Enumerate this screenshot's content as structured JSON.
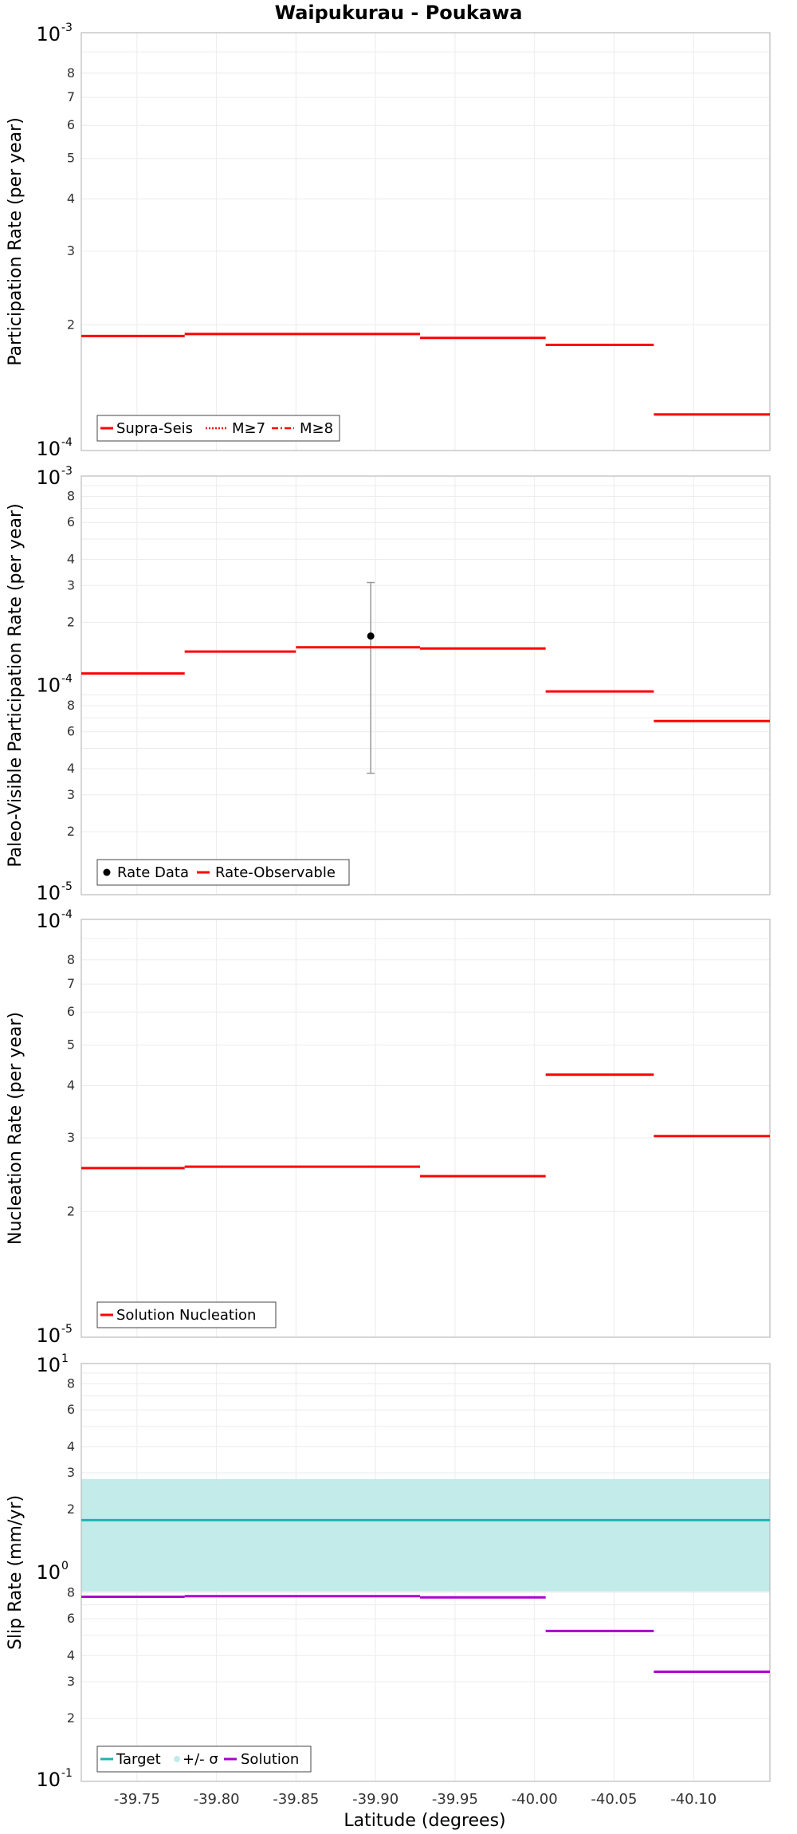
{
  "title": "Waipukurau - Poukawa",
  "xlabel": "Latitude (degrees)",
  "x_ticks": [
    "-39.75",
    "-39.80",
    "-39.85",
    "-39.90",
    "-39.95",
    "-40.00",
    "-40.05",
    "-40.10"
  ],
  "colors": {
    "red": "#ff0000",
    "cyan": "#1fb3b3",
    "band": "#c2ebea",
    "magenta": "#aa00cc",
    "frame": "#bbbbbb",
    "grid": "#ececec",
    "errorbar": "#999999"
  },
  "chart_data": [
    {
      "type": "line",
      "style": "step",
      "ylabel": "Participation Rate (per year)",
      "yscale": "log",
      "xlim": [
        -39.715,
        -40.148
      ],
      "ylim": [
        0.0001,
        0.001
      ],
      "decade_labels": [
        {
          "base": "10",
          "exp": "-3"
        },
        {
          "base": "10",
          "exp": "-4"
        }
      ],
      "minor_tick_labels": [
        "8",
        "7",
        "6",
        "5",
        "4",
        "3",
        "2"
      ],
      "legend": [
        "Supra-Seis",
        "M≥7",
        "M≥8"
      ],
      "legend_position": "bottom-left",
      "series": [
        {
          "name": "Supra-Seis",
          "color": "#ff0000",
          "segments": [
            {
              "x": [
                -39.715,
                -39.78
              ],
              "y": 0.000188
            },
            {
              "x": [
                -39.78,
                -39.928
              ],
              "y": 0.00019
            },
            {
              "x": [
                -39.928,
                -40.007
              ],
              "y": 0.000186
            },
            {
              "x": [
                -40.007,
                -40.075
              ],
              "y": 0.000179
            },
            {
              "x": [
                -40.075,
                -40.148
              ],
              "y": 0.000122
            }
          ]
        }
      ]
    },
    {
      "type": "scatter",
      "style": "step",
      "ylabel": "Paleo-Visible Participation Rate (per year)",
      "yscale": "log",
      "xlim": [
        -39.715,
        -40.148
      ],
      "ylim": [
        1e-05,
        0.001
      ],
      "decade_labels": [
        {
          "base": "10",
          "exp": "-3"
        },
        {
          "base": "10",
          "exp": "-4"
        },
        {
          "base": "10",
          "exp": "-5"
        }
      ],
      "minor_tick_labels": [
        "8",
        "6",
        "4",
        "3",
        "2",
        "8",
        "6",
        "4",
        "3",
        "2"
      ],
      "legend": [
        "Rate Data",
        "Rate-Observable"
      ],
      "legend_position": "bottom-left",
      "series": [
        {
          "name": "Rate Data",
          "color": "#000000",
          "points": [
            {
              "x": -39.897,
              "y": 0.000172,
              "err_low": 3.8e-05,
              "err_high": 0.00031
            }
          ]
        },
        {
          "name": "Rate-Observable",
          "color": "#ff0000",
          "segments": [
            {
              "x": [
                -39.715,
                -39.78
              ],
              "y": 0.000114
            },
            {
              "x": [
                -39.78,
                -39.85
              ],
              "y": 0.000145
            },
            {
              "x": [
                -39.85,
                -39.928
              ],
              "y": 0.000152
            },
            {
              "x": [
                -39.928,
                -40.007
              ],
              "y": 0.00015
            },
            {
              "x": [
                -40.007,
                -40.075
              ],
              "y": 9.35e-05
            },
            {
              "x": [
                -40.075,
                -40.148
              ],
              "y": 6.75e-05
            }
          ]
        }
      ]
    },
    {
      "type": "line",
      "style": "step",
      "ylabel": "Nucleation Rate (per year)",
      "yscale": "log",
      "xlim": [
        -39.715,
        -40.148
      ],
      "ylim": [
        1e-05,
        0.0001
      ],
      "decade_labels": [
        {
          "base": "10",
          "exp": "-4"
        },
        {
          "base": "10",
          "exp": "-5"
        }
      ],
      "minor_tick_labels": [
        "8",
        "7",
        "6",
        "5",
        "4",
        "3",
        "2"
      ],
      "legend": [
        "Solution Nucleation"
      ],
      "legend_position": "bottom-left",
      "series": [
        {
          "name": "Solution Nucleation",
          "color": "#ff0000",
          "segments": [
            {
              "x": [
                -39.715,
                -39.78
              ],
              "y": 2.54e-05
            },
            {
              "x": [
                -39.78,
                -39.928
              ],
              "y": 2.56e-05
            },
            {
              "x": [
                -39.928,
                -40.007
              ],
              "y": 2.43e-05
            },
            {
              "x": [
                -40.007,
                -40.075
              ],
              "y": 4.25e-05
            },
            {
              "x": [
                -40.075,
                -40.148
              ],
              "y": 3.03e-05
            }
          ]
        }
      ]
    },
    {
      "type": "line",
      "style": "step",
      "ylabel": "Slip Rate (mm/yr)",
      "yscale": "log",
      "xlim": [
        -39.715,
        -40.148
      ],
      "ylim": [
        0.1,
        10
      ],
      "decade_labels": [
        {
          "base": "10",
          "exp": "1"
        },
        {
          "base": "10",
          "exp": "0"
        },
        {
          "base": "10",
          "exp": "-1"
        }
      ],
      "minor_tick_labels": [
        "8",
        "6",
        "4",
        "3",
        "2",
        "8",
        "6",
        "4",
        "3",
        "2"
      ],
      "legend": [
        "Target",
        "+/- σ",
        "Solution"
      ],
      "legend_position": "bottom-left",
      "series": [
        {
          "name": "Target",
          "color": "#1fb3b3",
          "segments": [
            {
              "x": [
                -39.715,
                -40.148
              ],
              "y": 1.78
            }
          ]
        },
        {
          "name": "+/- σ",
          "color": "#c2ebea",
          "band": {
            "x": [
              -39.715,
              -40.148
            ],
            "low": 0.81,
            "high": 2.8
          }
        },
        {
          "name": "Solution",
          "color": "#aa00cc",
          "segments": [
            {
              "x": [
                -39.715,
                -39.78
              ],
              "y": 0.765
            },
            {
              "x": [
                -39.78,
                -39.928
              ],
              "y": 0.77
            },
            {
              "x": [
                -39.928,
                -40.007
              ],
              "y": 0.76
            },
            {
              "x": [
                -40.007,
                -40.075
              ],
              "y": 0.525
            },
            {
              "x": [
                -40.075,
                -40.148
              ],
              "y": 0.335
            }
          ]
        }
      ]
    }
  ]
}
